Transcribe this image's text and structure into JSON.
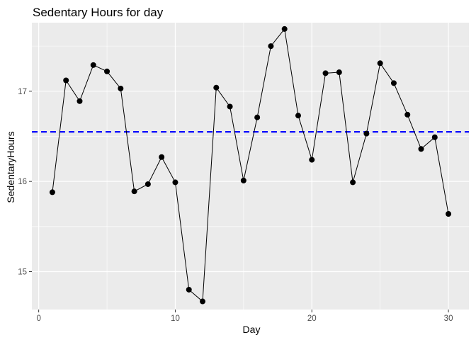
{
  "chart_data": {
    "type": "line",
    "title": "Sedentary Hours for day",
    "xlabel": "Day",
    "ylabel": "SedentaryHours",
    "xlim": [
      -0.5,
      31.5
    ],
    "ylim": [
      14.58,
      17.76
    ],
    "x_ticks": [
      0,
      10,
      20,
      30
    ],
    "x_tick_labels": [
      "0",
      "10",
      "20",
      "30"
    ],
    "y_ticks": [
      15,
      16,
      17
    ],
    "y_tick_labels": [
      "15",
      "16",
      "17"
    ],
    "grid": true,
    "background": "#ebebeb",
    "grid_major_color": "#ffffff",
    "series": [
      {
        "color": "#000000",
        "marker": "circle",
        "x": [
          1,
          2,
          3,
          4,
          5,
          6,
          7,
          8,
          9,
          10,
          11,
          12,
          13,
          14,
          15,
          16,
          17,
          18,
          19,
          20,
          21,
          22,
          23,
          24,
          25,
          26,
          27,
          28,
          29,
          30
        ],
        "y": [
          15.88,
          17.12,
          16.89,
          17.29,
          17.22,
          17.03,
          15.89,
          15.97,
          16.27,
          15.99,
          14.8,
          14.67,
          17.04,
          16.83,
          16.01,
          16.71,
          17.5,
          17.69,
          16.73,
          16.24,
          17.2,
          17.21,
          15.99,
          16.53,
          17.31,
          17.09,
          16.74,
          16.36,
          16.49,
          15.64
        ]
      }
    ],
    "hline": {
      "y": 16.55,
      "color": "#0000ff",
      "style": "dashed"
    }
  }
}
